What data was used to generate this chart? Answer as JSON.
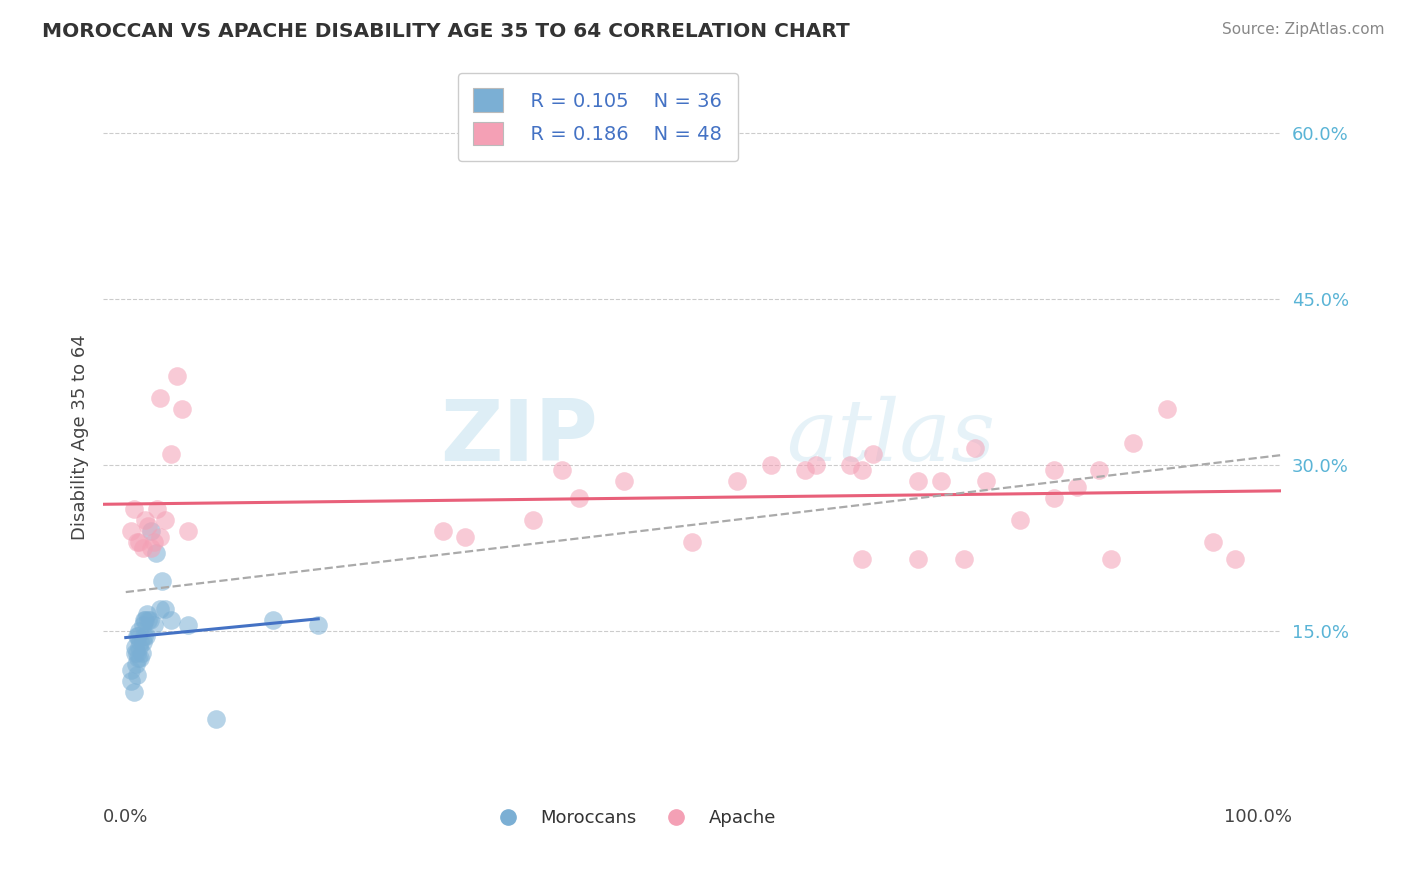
{
  "title": "MOROCCAN VS APACHE DISABILITY AGE 35 TO 64 CORRELATION CHART",
  "source": "Source: ZipAtlas.com",
  "ylabel": "Disability Age 35 to 64",
  "xlim": [
    -0.02,
    1.02
  ],
  "ylim": [
    0.0,
    0.65
  ],
  "x_ticks": [
    0.0,
    1.0
  ],
  "x_tick_labels": [
    "0.0%",
    "100.0%"
  ],
  "y_ticks": [
    0.15,
    0.3,
    0.45,
    0.6
  ],
  "y_tick_labels": [
    "15.0%",
    "30.0%",
    "45.0%",
    "60.0%"
  ],
  "moroccan_color": "#7bafd4",
  "apache_color": "#f4a0b5",
  "moroccan_line_color": "#4472c4",
  "apache_line_color": "#e8607a",
  "trendline_dashed_color": "#aaaaaa",
  "legend_R_moroccan": "R = 0.105",
  "legend_N_moroccan": "N = 36",
  "legend_R_apache": "R = 0.186",
  "legend_N_apache": "N = 48",
  "watermark_zip": "ZIP",
  "watermark_atlas": "atlas",
  "moroccan_x": [
    0.005,
    0.005,
    0.007,
    0.008,
    0.008,
    0.009,
    0.01,
    0.01,
    0.01,
    0.011,
    0.011,
    0.012,
    0.012,
    0.013,
    0.013,
    0.014,
    0.015,
    0.015,
    0.016,
    0.016,
    0.017,
    0.018,
    0.019,
    0.02,
    0.021,
    0.022,
    0.025,
    0.027,
    0.03,
    0.032,
    0.035,
    0.04,
    0.055,
    0.08,
    0.13,
    0.17
  ],
  "moroccan_y": [
    0.105,
    0.115,
    0.095,
    0.13,
    0.135,
    0.12,
    0.11,
    0.13,
    0.145,
    0.125,
    0.145,
    0.135,
    0.15,
    0.125,
    0.14,
    0.13,
    0.14,
    0.155,
    0.145,
    0.16,
    0.16,
    0.145,
    0.165,
    0.16,
    0.16,
    0.24,
    0.155,
    0.22,
    0.17,
    0.195,
    0.17,
    0.16,
    0.155,
    0.07,
    0.16,
    0.155
  ],
  "apache_x": [
    0.005,
    0.007,
    0.01,
    0.012,
    0.015,
    0.017,
    0.02,
    0.022,
    0.025,
    0.028,
    0.03,
    0.03,
    0.035,
    0.04,
    0.045,
    0.05,
    0.055,
    0.28,
    0.3,
    0.36,
    0.385,
    0.4,
    0.44,
    0.5,
    0.54,
    0.57,
    0.6,
    0.61,
    0.64,
    0.66,
    0.7,
    0.72,
    0.74,
    0.76,
    0.79,
    0.82,
    0.84,
    0.86,
    0.89,
    0.92,
    0.96,
    0.98,
    0.65,
    0.75,
    0.82,
    0.87,
    0.7,
    0.65
  ],
  "apache_y": [
    0.24,
    0.26,
    0.23,
    0.23,
    0.225,
    0.25,
    0.245,
    0.225,
    0.23,
    0.26,
    0.235,
    0.36,
    0.25,
    0.31,
    0.38,
    0.35,
    0.24,
    0.24,
    0.235,
    0.25,
    0.295,
    0.27,
    0.285,
    0.23,
    0.285,
    0.3,
    0.295,
    0.3,
    0.3,
    0.31,
    0.285,
    0.285,
    0.215,
    0.285,
    0.25,
    0.295,
    0.28,
    0.295,
    0.32,
    0.35,
    0.23,
    0.215,
    0.295,
    0.315,
    0.27,
    0.215,
    0.215,
    0.215
  ]
}
